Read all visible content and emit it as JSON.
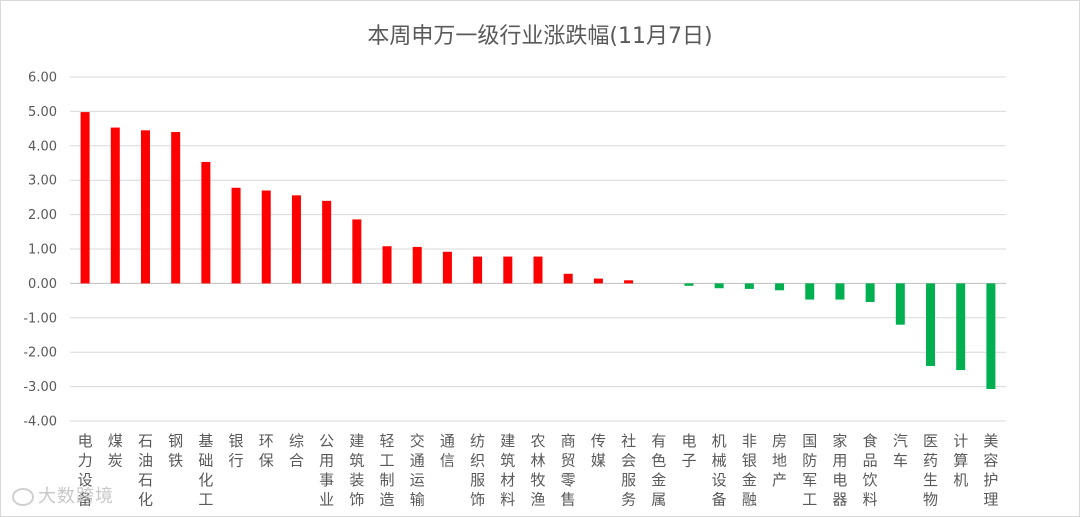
{
  "chart_data": {
    "type": "bar",
    "title": "本周申万一级行业涨跌幅(11月7日)",
    "xlabel": "",
    "ylabel": "",
    "ylim": [
      -4.0,
      6.0
    ],
    "yticks": [
      "6.00",
      "5.00",
      "4.00",
      "3.00",
      "2.00",
      "1.00",
      "0.00",
      "-1.00",
      "-2.00",
      "-3.00",
      "-4.00"
    ],
    "grid": true,
    "legend": "none",
    "colors": {
      "positive": "#ff0000",
      "negative": "#00b050",
      "grid": "#d9d9d9"
    },
    "categories": [
      "电力设备",
      "煤炭",
      "石油石化",
      "钢铁",
      "基础化工",
      "银行",
      "环保",
      "综合",
      "公用事业",
      "建筑装饰",
      "轻工制造",
      "交通运输",
      "通信",
      "纺织服饰",
      "建筑材料",
      "农林牧渔",
      "商贸零售",
      "传媒",
      "社会服务",
      "有色金属",
      "电子",
      "机械设备",
      "非银金融",
      "房地产",
      "国防军工",
      "家用电器",
      "食品饮料",
      "汽车",
      "医药生物",
      "计算机",
      "美容护理"
    ],
    "values": [
      4.98,
      4.53,
      4.45,
      4.4,
      3.53,
      2.78,
      2.7,
      2.56,
      2.4,
      1.86,
      1.08,
      1.06,
      0.92,
      0.78,
      0.78,
      0.78,
      0.28,
      0.14,
      0.09,
      0.0,
      -0.07,
      -0.14,
      -0.16,
      -0.2,
      -0.47,
      -0.47,
      -0.54,
      -1.2,
      -2.4,
      -2.52,
      -3.07
    ]
  },
  "watermark": {
    "text": "大数跨境",
    "icon": "watermark-logo-icon"
  }
}
